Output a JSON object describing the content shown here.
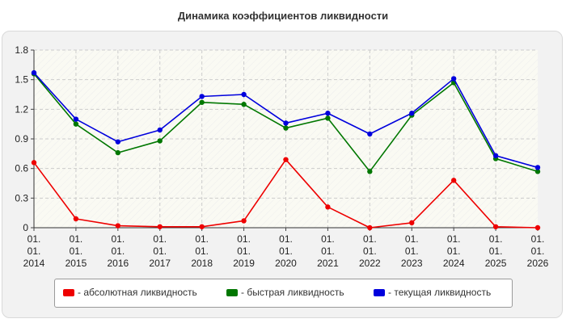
{
  "chart_data": {
    "type": "line",
    "title": "Динамика коэффициентов ликвидности",
    "xlabel": "",
    "ylabel": "",
    "ylim": [
      0,
      1.8
    ],
    "yticks": [
      "0",
      "0.3",
      "0.6",
      "0.9",
      "1.2",
      "1.5",
      "1.8"
    ],
    "categories": [
      [
        "01.",
        "01.",
        "2014"
      ],
      [
        "01.",
        "01.",
        "2015"
      ],
      [
        "01.",
        "01.",
        "2016"
      ],
      [
        "01.",
        "01.",
        "2017"
      ],
      [
        "01.",
        "01.",
        "2018"
      ],
      [
        "01.",
        "01.",
        "2019"
      ],
      [
        "01.",
        "01.",
        "2020"
      ],
      [
        "01.",
        "01.",
        "2021"
      ],
      [
        "01.",
        "01.",
        "2022"
      ],
      [
        "01.",
        "01.",
        "2023"
      ],
      [
        "01.",
        "01.",
        "2024"
      ],
      [
        "01.",
        "01.",
        "2025"
      ],
      [
        "01.",
        "01.",
        "2026"
      ]
    ],
    "grid": true,
    "legend_position": "bottom",
    "series": [
      {
        "name": "- абсолютная ликвидность",
        "color": "#ee0000",
        "values": [
          0.66,
          0.09,
          0.02,
          0.01,
          0.01,
          0.07,
          0.69,
          0.21,
          0.0,
          0.05,
          0.48,
          0.01,
          0.0
        ]
      },
      {
        "name": "- быстрая ликвидность",
        "color": "#007700",
        "values": [
          1.56,
          1.05,
          0.76,
          0.88,
          1.27,
          1.25,
          1.01,
          1.11,
          0.57,
          1.14,
          1.47,
          0.7,
          0.57
        ]
      },
      {
        "name": "- текущая ликвидность",
        "color": "#0000dd",
        "values": [
          1.57,
          1.1,
          0.87,
          0.99,
          1.33,
          1.35,
          1.06,
          1.16,
          0.95,
          1.16,
          1.51,
          0.73,
          0.61
        ]
      }
    ]
  }
}
